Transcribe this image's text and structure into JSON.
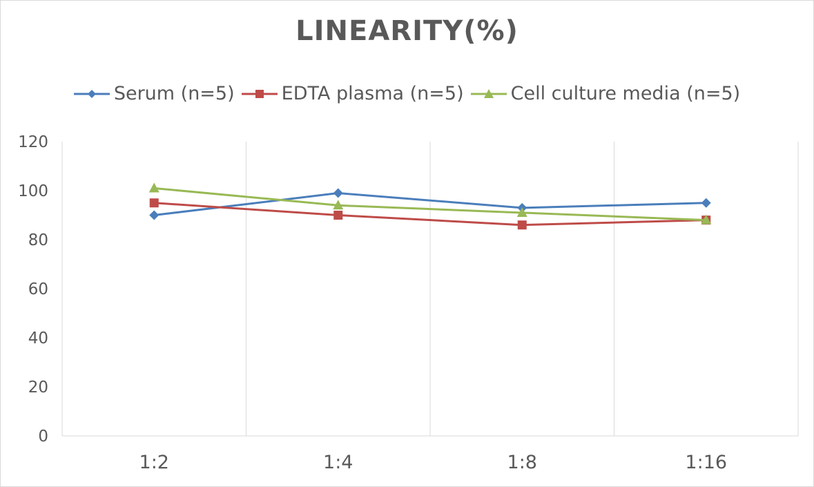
{
  "chart_data": {
    "type": "line",
    "title": "LINEARITY(%)",
    "categories": [
      "1:2",
      "1:4",
      "1:8",
      "1:16"
    ],
    "ylim": [
      0,
      120
    ],
    "yticks": [
      0,
      20,
      40,
      60,
      80,
      100,
      120
    ],
    "grid": "vertical",
    "legend_position": "top",
    "series": [
      {
        "name": "Serum (n=5)",
        "values": [
          90,
          99,
          93,
          95
        ],
        "color": "#4a7ebb",
        "marker": "diamond"
      },
      {
        "name": "EDTA plasma (n=5)",
        "values": [
          95,
          90,
          86,
          88
        ],
        "color": "#be4b48",
        "marker": "square"
      },
      {
        "name": "Cell culture media (n=5)",
        "values": [
          101,
          94,
          91,
          88
        ],
        "color": "#98b954",
        "marker": "triangle"
      }
    ]
  }
}
